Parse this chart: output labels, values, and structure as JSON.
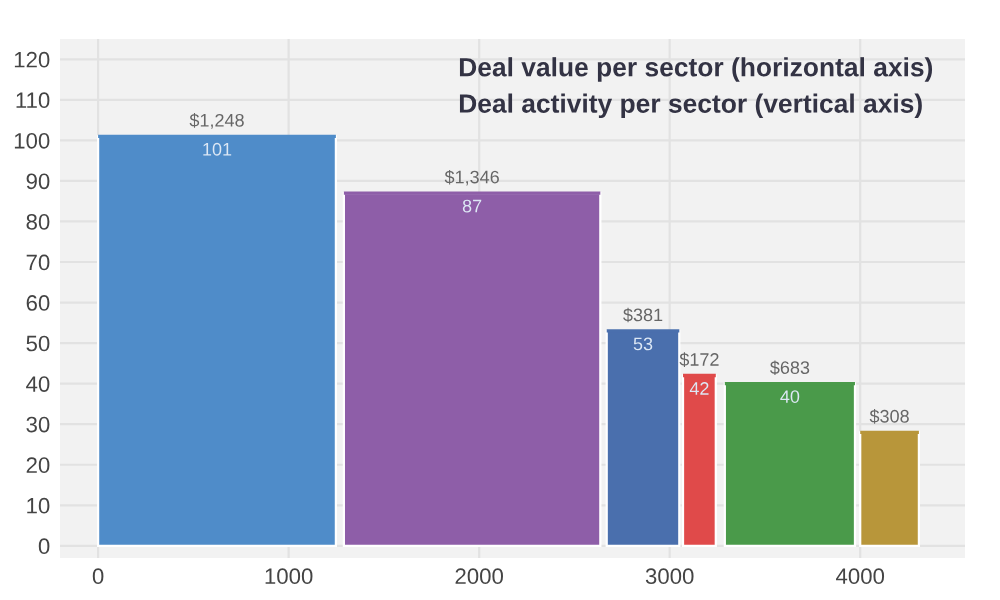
{
  "chart_data": {
    "type": "bar",
    "title": "Deal value per sector (horizontal axis)",
    "subtitle": "Deal activity per sector (vertical axis)",
    "x": [
      624,
      1963,
      2860,
      3156,
      3631,
      4154
    ],
    "xerrors": [
      624,
      673,
      190.5,
      86,
      341.5,
      154
    ],
    "values": [
      101,
      87,
      53,
      42,
      40,
      28
    ],
    "value_labels": [
      "101",
      "87",
      "53",
      "42",
      "40",
      null
    ],
    "colors": [
      "#4f8cc9",
      "#8e5ea8",
      "#4a6fad",
      "#e04a4a",
      "#4a9a4a",
      "#b8963a"
    ],
    "annotations": [
      {
        "text": "$1,248",
        "x": 624,
        "y": 101
      },
      {
        "text": "$1,346",
        "x": 1963,
        "y": 87
      },
      {
        "text": "$381",
        "x": 2860,
        "y": 53
      },
      {
        "text": "$172",
        "x": 3156,
        "y": 42
      },
      {
        "text": "$683",
        "x": 3631,
        "y": 40
      },
      {
        "text": "$308",
        "x": 4154,
        "y": 28
      }
    ],
    "xlim": [
      -200,
      4550
    ],
    "xticks": [
      0,
      1000,
      2000,
      3000,
      4000
    ],
    "ylim": [
      -3,
      125
    ],
    "yticks": [
      0,
      10,
      20,
      30,
      40,
      50,
      60,
      70,
      80,
      90,
      100,
      110,
      120
    ],
    "grid": true
  }
}
